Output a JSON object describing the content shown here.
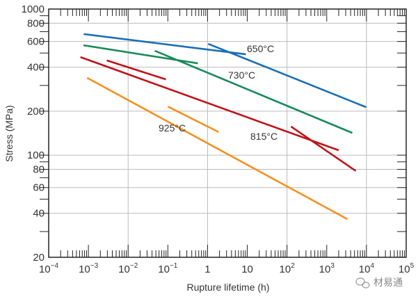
{
  "chart_data": {
    "type": "line",
    "title": "",
    "xlabel": "Rupture lifetime (h)",
    "ylabel": "Stress (MPa)",
    "xscale": "log",
    "yscale": "log",
    "xlim": [
      0.0001,
      100000
    ],
    "ylim": [
      20,
      1000
    ],
    "grid": true,
    "x_ticks": [
      {
        "base": "10",
        "exp": "−4"
      },
      {
        "base": "10",
        "exp": "−3"
      },
      {
        "base": "10",
        "exp": "−2"
      },
      {
        "base": "10",
        "exp": "−1"
      },
      {
        "base": "1",
        "exp": ""
      },
      {
        "base": "10",
        "exp": ""
      },
      {
        "base": "10",
        "exp": "2"
      },
      {
        "base": "10",
        "exp": "3"
      },
      {
        "base": "10",
        "exp": "4"
      },
      {
        "base": "10",
        "exp": "5"
      }
    ],
    "y_ticks": [
      "1000",
      "800",
      "600",
      "400",
      "200",
      "100",
      "80",
      "60",
      "40",
      "20"
    ],
    "series": [
      {
        "name": "650°C",
        "color": "#1a6fb5",
        "segments": [
          [
            [
              0.00076,
              674
            ],
            [
              9.2,
              490
            ]
          ],
          [
            [
              1.04,
              578
            ],
            [
              9800,
              213
            ]
          ]
        ]
      },
      {
        "name": "730°C",
        "color": "#1a8a5a",
        "segments": [
          [
            [
              0.00075,
              565
            ],
            [
              0.57,
              425
            ]
          ],
          [
            [
              0.047,
              518
            ],
            [
              4400,
              142
            ]
          ]
        ]
      },
      {
        "name": "815°C",
        "color": "#c0131a",
        "segments": [
          [
            [
              0.00063,
              469
            ],
            [
              2000,
              108
            ]
          ],
          [
            [
              0.0029,
              445
            ],
            [
              0.089,
              330
            ]
          ],
          [
            [
              126,
              157
            ],
            [
              5400,
              78
            ]
          ]
        ]
      },
      {
        "name": "925°C",
        "color": "#f7901e",
        "segments": [
          [
            [
              0.00093,
              338
            ],
            [
              3300,
              36.5
            ]
          ],
          [
            [
              0.1,
              215
            ],
            [
              1.9,
              144
            ]
          ]
        ]
      }
    ]
  },
  "watermark": "材易通"
}
